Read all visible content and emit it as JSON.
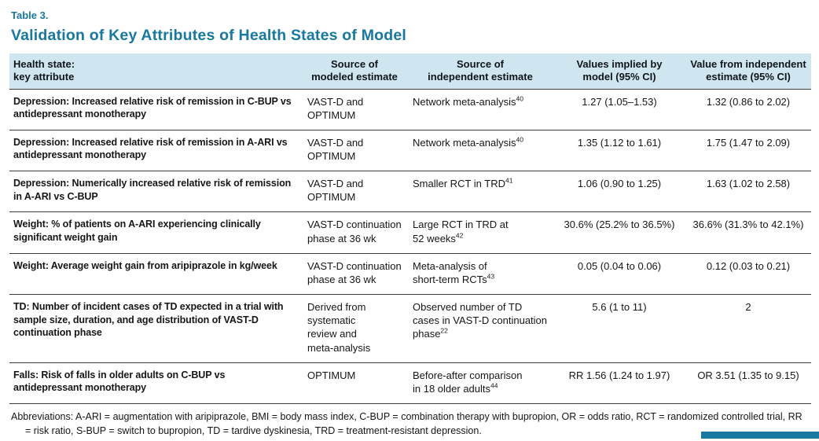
{
  "accent_color": "#1878a0",
  "header": {
    "table_label": "Table 3.",
    "title": "Validation of Key Attributes of Health States of Model"
  },
  "table": {
    "columns": [
      "Health state:\nkey attribute",
      "Source of\nmodeled estimate",
      "Source of\nindependent estimate",
      "Values implied by\nmodel (95% CI)",
      "Value from independent\nestimate (95% CI)"
    ],
    "rows": [
      {
        "attribute": "Depression: Increased relative risk of remission in C-BUP vs antidepressant monotherapy",
        "source_modeled": "VAST-D and\nOPTIMUM",
        "source_independent": "Network meta-analysis",
        "source_independent_ref": "40",
        "value_model": "1.27 (1.05–1.53)",
        "value_independent": "1.32 (0.86 to 2.02)"
      },
      {
        "attribute": "Depression: Increased relative risk of remission in A-ARI vs antidepressant monotherapy",
        "source_modeled": "VAST-D and\nOPTIMUM",
        "source_independent": "Network meta-analysis",
        "source_independent_ref": "40",
        "value_model": "1.35 (1.12 to 1.61)",
        "value_independent": "1.75 (1.47 to 2.09)"
      },
      {
        "attribute": "Depression: Numerically increased relative risk of remission in A-ARI vs C-BUP",
        "source_modeled": "VAST-D and\nOPTIMUM",
        "source_independent": "Smaller RCT in TRD",
        "source_independent_ref": "41",
        "value_model": "1.06 (0.90 to 1.25)",
        "value_independent": "1.63 (1.02 to 2.58)"
      },
      {
        "attribute": "Weight: % of patients on A-ARI experiencing clinically significant weight gain",
        "source_modeled": "VAST-D continuation\nphase at 36 wk",
        "source_independent": "Large RCT in TRD at\n52 weeks",
        "source_independent_ref": "42",
        "value_model": "30.6% (25.2% to 36.5%)",
        "value_independent": "36.6% (31.3% to 42.1%)"
      },
      {
        "attribute": "Weight: Average weight gain from aripiprazole in kg/week",
        "source_modeled": "VAST-D continuation\nphase at 36 wk",
        "source_independent": "Meta-analysis of\nshort-term RCTs",
        "source_independent_ref": "43",
        "value_model": "0.05 (0.04 to 0.06)",
        "value_independent": "0.12 (0.03 to 0.21)"
      },
      {
        "attribute": "TD: Number of incident cases of TD expected in a trial with sample size, duration, and age distribution of VAST-D continuation phase",
        "source_modeled": "Derived from\nsystematic\nreview and\nmeta-analysis",
        "source_independent": "Observed number of TD\ncases in VAST-D continuation\nphase",
        "source_independent_ref": "22",
        "value_model": "5.6 (1 to 11)",
        "value_independent": "2"
      },
      {
        "attribute": "Falls: Risk of falls in older adults on C-BUP vs antidepressant monotherapy",
        "source_modeled": "OPTIMUM",
        "source_independent": "Before-after comparison\nin 18 older adults",
        "source_independent_ref": "44",
        "value_model": "RR 1.56 (1.24 to 1.97)",
        "value_independent": "OR 3.51 (1.35 to 9.15)"
      }
    ]
  },
  "footnote": "Abbreviations: A-ARI = augmentation with aripiprazole, BMI = body mass index, C-BUP = combination therapy with bupropion, OR = odds ratio, RCT = randomized controlled trial, RR = risk ratio, S-BUP = switch to bupropion, TD = tardive dyskinesia, TRD = treatment-resistant depression."
}
